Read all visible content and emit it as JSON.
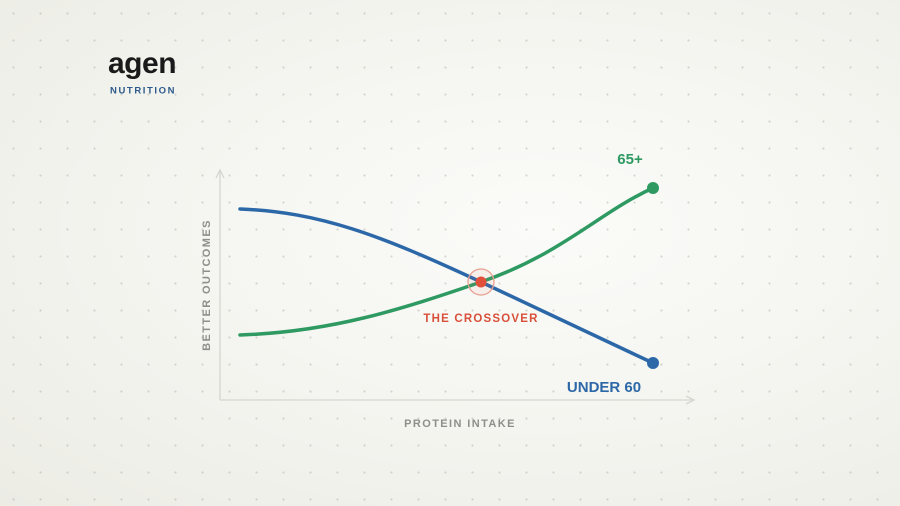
{
  "brand": {
    "name": "agen",
    "tagline": "NUTRITION"
  },
  "diagram": {
    "y_axis_label": "BETTER OUTCOMES",
    "x_axis_label": "PROTEIN INTAKE",
    "series": [
      {
        "name": "65+",
        "color": "#2e9a62"
      },
      {
        "name": "UNDER 60",
        "color": "#2c68a8"
      }
    ],
    "annotation": "THE CROSSOVER"
  }
}
